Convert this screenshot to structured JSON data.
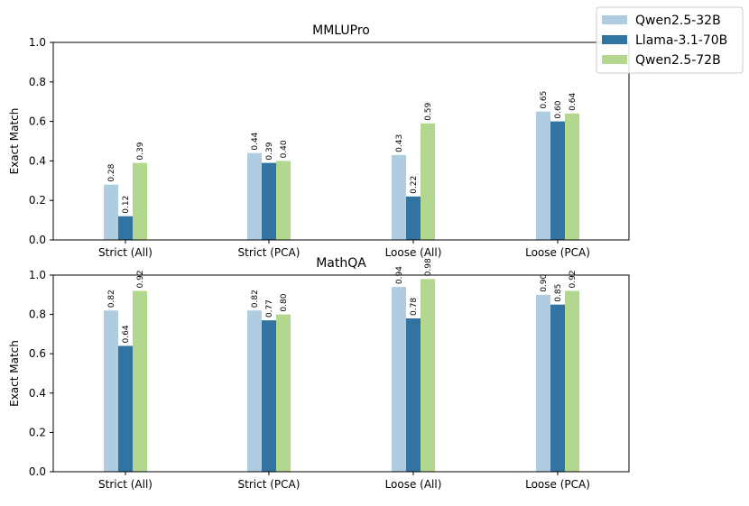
{
  "legend": {
    "placement": "top-right",
    "entries": [
      {
        "name": "Qwen2.5-32B",
        "color": "#aecde1"
      },
      {
        "name": "Llama-3.1-70B",
        "color": "#3274a1"
      },
      {
        "name": "Qwen2.5-72B",
        "color": "#b3d78f"
      }
    ]
  },
  "chart_data": [
    {
      "type": "bar",
      "title": "MMLUPro",
      "xlabel": "",
      "ylabel": "Exact Match",
      "ylim": [
        0,
        1.0
      ],
      "yticks": [
        "0.0",
        "0.2",
        "0.4",
        "0.6",
        "0.8",
        "1.0"
      ],
      "categories": [
        "Strict (All)",
        "Strict (PCA)",
        "Loose (All)",
        "Loose (PCA)"
      ],
      "series": [
        {
          "name": "Qwen2.5-32B",
          "values": [
            0.28,
            0.44,
            0.43,
            0.65
          ],
          "labels": [
            "0.28",
            "0.44",
            "0.43",
            "0.65"
          ]
        },
        {
          "name": "Llama-3.1-70B",
          "values": [
            0.12,
            0.39,
            0.22,
            0.6
          ],
          "labels": [
            "0.12",
            "0.39",
            "0.22",
            "0.60"
          ]
        },
        {
          "name": "Qwen2.5-72B",
          "values": [
            0.39,
            0.4,
            0.59,
            0.64
          ],
          "labels": [
            "0.39",
            "0.40",
            "0.59",
            "0.64"
          ]
        }
      ]
    },
    {
      "type": "bar",
      "title": "MathQA",
      "xlabel": "",
      "ylabel": "Exact Match",
      "ylim": [
        0,
        1.0
      ],
      "yticks": [
        "0.0",
        "0.2",
        "0.4",
        "0.6",
        "0.8",
        "1.0"
      ],
      "categories": [
        "Strict (All)",
        "Strict (PCA)",
        "Loose (All)",
        "Loose (PCA)"
      ],
      "series": [
        {
          "name": "Qwen2.5-32B",
          "values": [
            0.82,
            0.82,
            0.94,
            0.9
          ],
          "labels": [
            "0.82",
            "0.82",
            "0.94",
            "0.90"
          ]
        },
        {
          "name": "Llama-3.1-70B",
          "values": [
            0.64,
            0.77,
            0.78,
            0.85
          ],
          "labels": [
            "0.64",
            "0.77",
            "0.78",
            "0.85"
          ]
        },
        {
          "name": "Qwen2.5-72B",
          "values": [
            0.92,
            0.8,
            0.98,
            0.92
          ],
          "labels": [
            "0.92",
            "0.80",
            "0.98",
            "0.92"
          ]
        }
      ]
    }
  ]
}
